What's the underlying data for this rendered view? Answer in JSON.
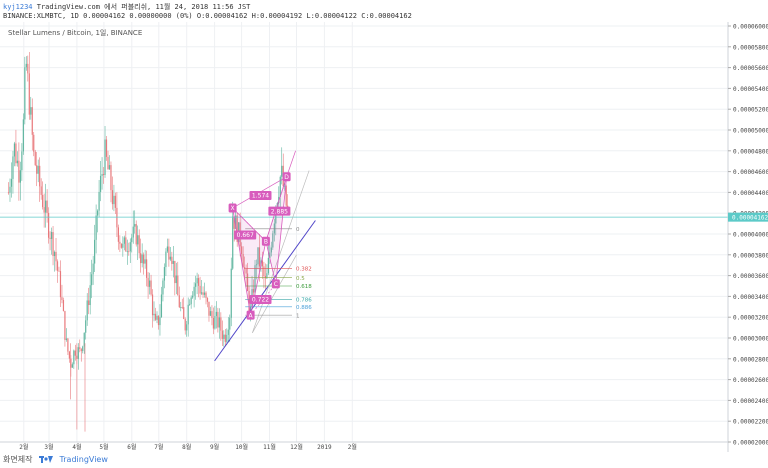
{
  "header": {
    "user": "kyj1234",
    "published": "TradingView.com 에서 퍼블리쉬, 11월 24, 2018 11:56 JST",
    "ohlc": "BINANCE:XLMBTC, 1D 0.00004162 0.00000000 (0%) O:0.00004162 H:0.00004192 L:0.00004122 C:0.00004162"
  },
  "footer": {
    "capture_label": "화면제작",
    "brand": "TradingView"
  },
  "colors": {
    "up": "#5fb59f",
    "down": "#e8787b",
    "current": "#5ccac8",
    "trend": "#5046c8",
    "harmonic": "#d85cbd",
    "fib": "#aaaaaa"
  },
  "chart_data": {
    "type": "candlestick",
    "title": "Stellar Lumens / Bitcoin, 1일, BINANCE",
    "ylim": [
      2e-05,
      6e-05
    ],
    "y_ticks": [
      "0.00006000",
      "0.00005800",
      "0.00005600",
      "0.00005400",
      "0.00005200",
      "0.00005000",
      "0.00004800",
      "0.00004600",
      "0.00004400",
      "0.00004200",
      "0.00004000",
      "0.00003800",
      "0.00003600",
      "0.00003400",
      "0.00003200",
      "0.00003000",
      "0.00002800",
      "0.00002600",
      "0.00002400",
      "0.00002200",
      "0.00002000"
    ],
    "x_ticks": [
      "2월",
      "3월",
      "4월",
      "5월",
      "6월",
      "7월",
      "8월",
      "9월",
      "10월",
      "11월",
      "12월",
      "2019",
      "2월"
    ],
    "current_price": "0.00004162",
    "price_path": [
      [
        "2018-01-15",
        4.4e-05
      ],
      [
        "2018-01-21",
        4.85e-05
      ],
      [
        "2018-01-27",
        4.6e-05
      ],
      [
        "2018-02-01",
        5.1e-05
      ],
      [
        "2018-02-03",
        5.7e-05
      ],
      [
        "2018-02-06",
        5.4e-05
      ],
      [
        "2018-02-12",
        4.75e-05
      ],
      [
        "2018-02-20",
        4.4e-05
      ],
      [
        "2018-02-28",
        4.1e-05
      ],
      [
        "2018-03-07",
        3.85e-05
      ],
      [
        "2018-03-14",
        3.45e-05
      ],
      [
        "2018-03-20",
        2.95e-05
      ],
      [
        "2018-03-25",
        2.75e-05
      ],
      [
        "2018-03-30",
        2.9e-05
      ],
      [
        "2018-04-05",
        2.85e-05
      ],
      [
        "2018-04-12",
        3.25e-05
      ],
      [
        "2018-04-20",
        3.8e-05
      ],
      [
        "2018-04-25",
        4.35e-05
      ],
      [
        "2018-05-02",
        4.78e-05
      ],
      [
        "2018-05-08",
        4.5e-05
      ],
      [
        "2018-05-15",
        4.1e-05
      ],
      [
        "2018-05-22",
        3.85e-05
      ],
      [
        "2018-05-29",
        3.95e-05
      ],
      [
        "2018-06-06",
        4e-05
      ],
      [
        "2018-06-12",
        3.75e-05
      ],
      [
        "2018-06-20",
        3.55e-05
      ],
      [
        "2018-06-27",
        3.1e-05
      ],
      [
        "2018-07-02",
        3.2e-05
      ],
      [
        "2018-07-08",
        3.8e-05
      ],
      [
        "2018-07-14",
        3.9e-05
      ],
      [
        "2018-07-22",
        3.4e-05
      ],
      [
        "2018-07-30",
        3.1e-05
      ],
      [
        "2018-08-05",
        3.45e-05
      ],
      [
        "2018-08-12",
        3.55e-05
      ],
      [
        "2018-08-20",
        3.4e-05
      ],
      [
        "2018-08-28",
        3.2e-05
      ],
      [
        "2018-09-05",
        3.15e-05
      ],
      [
        "2018-09-12",
        3e-05
      ],
      [
        "2018-09-18",
        3.25e-05
      ],
      [
        "2018-09-21",
        4.2e-05
      ],
      [
        "2018-09-24",
        4.1e-05
      ],
      [
        "2018-10-01",
        3.9e-05
      ],
      [
        "2018-10-07",
        3.45e-05
      ],
      [
        "2018-10-11",
        3.25e-05
      ],
      [
        "2018-10-18",
        3.8e-05
      ],
      [
        "2018-10-24",
        3.65e-05
      ],
      [
        "2018-10-28",
        3.5e-05
      ],
      [
        "2018-11-03",
        3.95e-05
      ],
      [
        "2018-11-08",
        4.3e-05
      ],
      [
        "2018-11-14",
        4.6e-05
      ],
      [
        "2018-11-18",
        4.35e-05
      ],
      [
        "2018-11-22",
        4.16e-05
      ]
    ],
    "harmonic_points": [
      {
        "label": "X",
        "date": "2018-09-21",
        "price": 4.25e-05
      },
      {
        "label": "A",
        "date": "2018-10-11",
        "price": 3.22e-05
      },
      {
        "label": "B",
        "date": "2018-10-28",
        "price": 3.93e-05
      },
      {
        "label": "C",
        "date": "2018-11-08",
        "price": 3.52e-05
      },
      {
        "label": "D",
        "date": "2018-11-20",
        "price": 4.55e-05
      }
    ],
    "harmonic_ratios": [
      {
        "label": "1.574",
        "date": "2018-10-22",
        "price": 4.37e-05
      },
      {
        "label": "0.667",
        "date": "2018-10-05",
        "price": 3.99e-05
      },
      {
        "label": "2.885",
        "date": "2018-11-12",
        "price": 4.22e-05
      },
      {
        "label": "0.722",
        "date": "2018-10-22",
        "price": 3.37e-05
      }
    ],
    "fib_levels": [
      {
        "label": "0",
        "price": 4.05e-05,
        "color": "#888888"
      },
      {
        "label": "0.382",
        "price": 3.67e-05,
        "color": "#e05555"
      },
      {
        "label": "0.5",
        "price": 3.58e-05,
        "color": "#8aa84a"
      },
      {
        "label": "0.618",
        "price": 3.5e-05,
        "color": "#3a9a3a"
      },
      {
        "label": "0.786",
        "price": 3.37e-05,
        "color": "#3aa8a8"
      },
      {
        "label": "0.886",
        "price": 3.3e-05,
        "color": "#4aa0d8"
      },
      {
        "label": "1",
        "price": 3.22e-05,
        "color": "#888888"
      }
    ],
    "trendlines": [
      {
        "name": "support",
        "from": [
          "2018-09-01",
          2.78e-05
        ],
        "to": [
          "2018-12-22",
          4.13e-05
        ],
        "color": "#5046c8"
      },
      {
        "name": "channel-upper",
        "from": [
          "2018-10-13",
          3.05e-05
        ],
        "to": [
          "2018-12-15",
          4.61e-05
        ],
        "color": "#bbbbbb"
      },
      {
        "name": "channel-lower",
        "from": [
          "2018-10-13",
          3.05e-05
        ],
        "to": [
          "2018-12-01",
          3.8e-05
        ],
        "color": "#bbbbbb"
      },
      {
        "name": "pattern-extension",
        "from": [
          "2018-11-20",
          4.55e-05
        ],
        "to": [
          "2018-11-30",
          4.8e-05
        ],
        "color": "#d85cbd"
      }
    ],
    "grid": true,
    "legend": "none"
  }
}
